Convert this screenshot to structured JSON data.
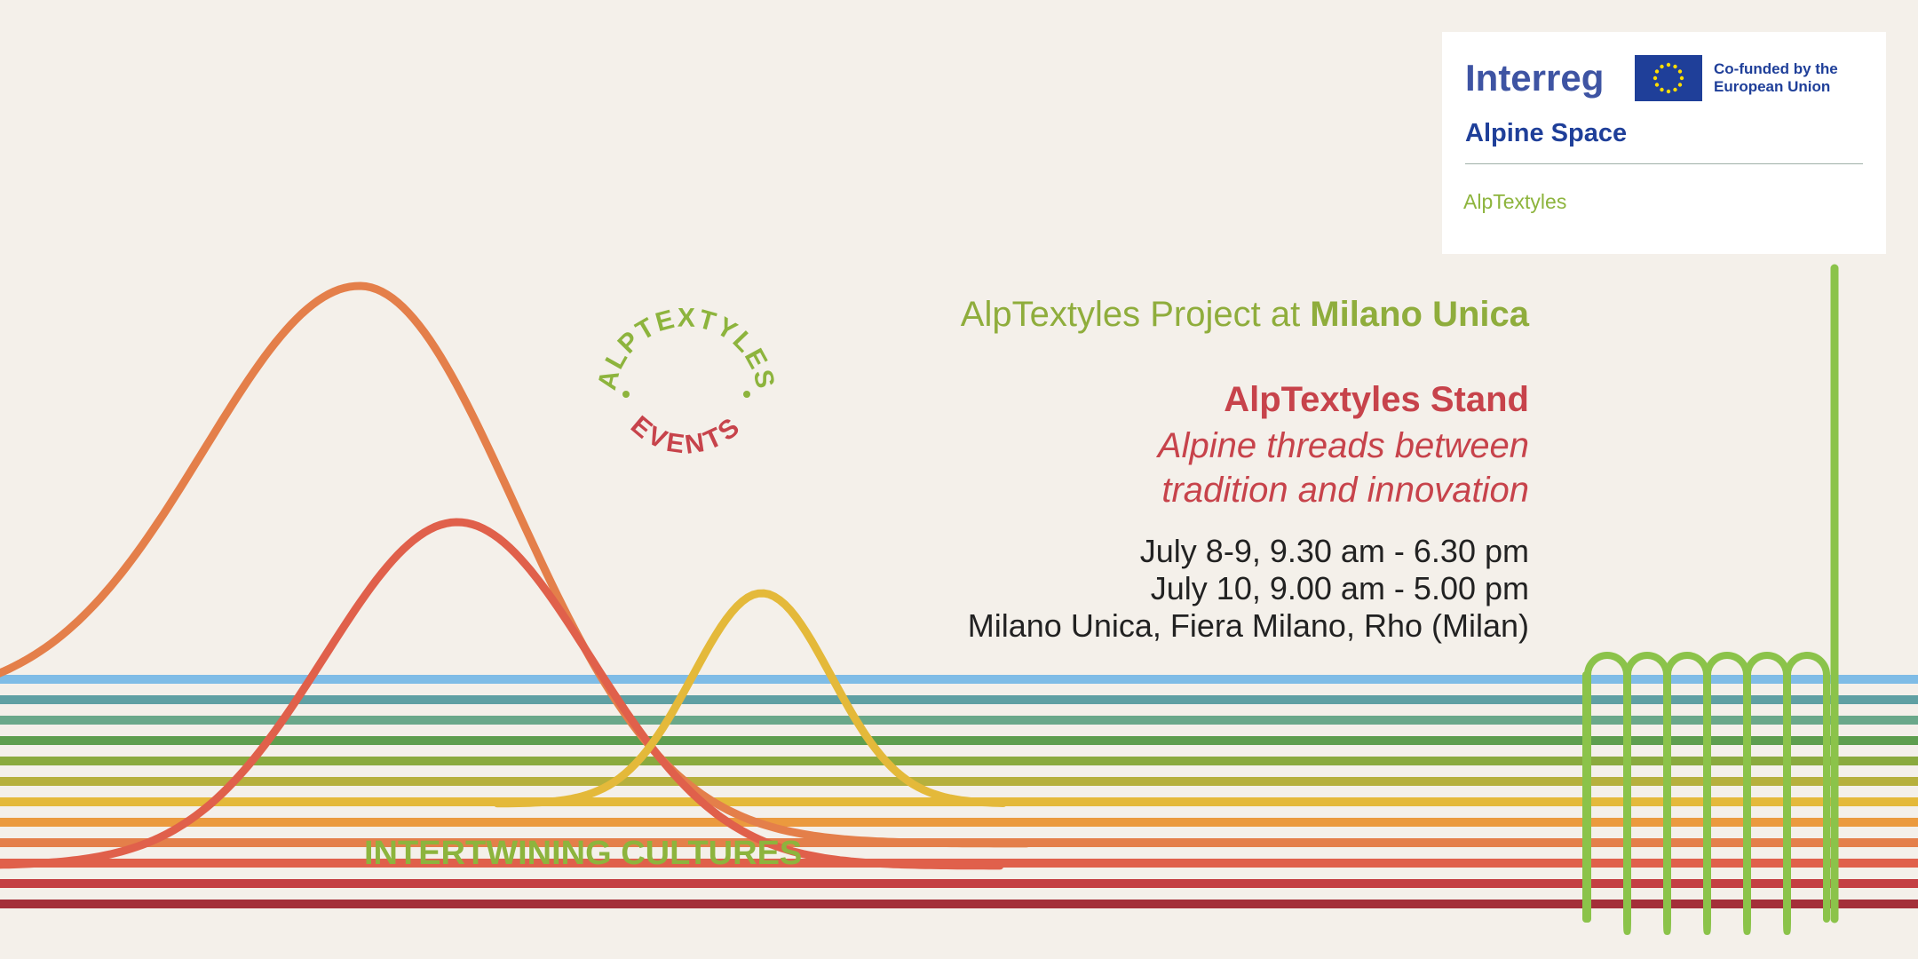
{
  "logo": {
    "program": "Interreg",
    "cofunded": "Co-funded by the European Union",
    "region": "Alpine Space",
    "project": "AlpTextyles",
    "colors": {
      "program": "#3e54a3",
      "eu_blue": "#1f3f99",
      "eu_star": "#ffdd00",
      "project": "#8db43d"
    }
  },
  "badge": {
    "top_text": "ALPTEXTYLES",
    "bottom_text": "EVENTS",
    "colors": {
      "top": "#8db43d",
      "bottom": "#c7434b"
    }
  },
  "event": {
    "intro_prefix": "AlpTextyles Project at ",
    "intro_highlight": "Milano Unica",
    "stand_title": "AlpTextyles Stand",
    "tagline_line1": "Alpine threads between",
    "tagline_line2": "tradition and innovation",
    "date_line1": "July 8-9, 9.30 am - 6.30 pm",
    "date_line2": "July 10, 9.00 am - 5.00 pm",
    "location": "Milano Unica, Fiera Milano, Rho (Milan)"
  },
  "footer_title": "INTERTWINING CULTURES",
  "palette": {
    "stripes": [
      "#7fbce6",
      "#5fa0a3",
      "#6aa88a",
      "#5e9e4f",
      "#8aaa3e",
      "#b6b03d",
      "#e4b93a",
      "#eb9a3e",
      "#e47f4a",
      "#e0604b",
      "#c43f43",
      "#a42f39"
    ],
    "wave_orange": "#e47f4a",
    "wave_red": "#e0604b",
    "wave_yellow": "#e4b93a",
    "weave_green": "#8bc34a"
  }
}
